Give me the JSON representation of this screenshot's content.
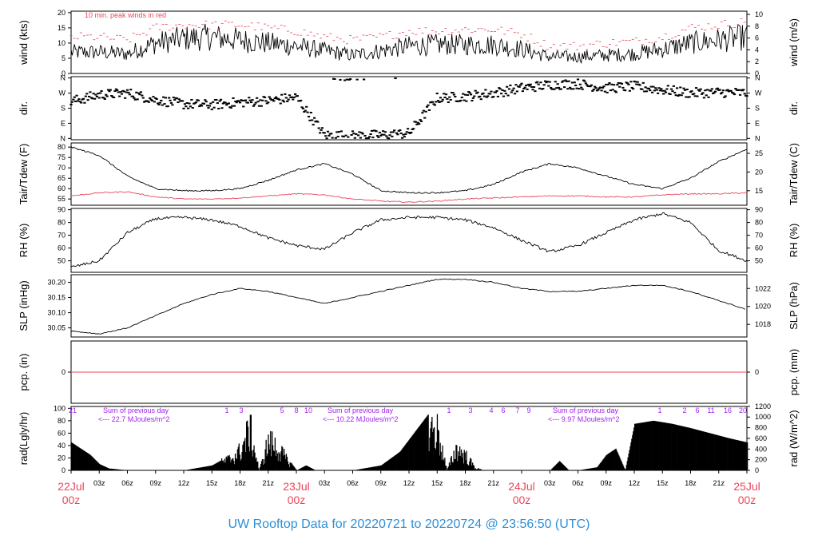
{
  "footer": "UW Rooftop Data for 20220721  to  20220724 @ 23:56:50  (UTC)",
  "colors": {
    "peak": "#e8475b",
    "dew": "#e8475b",
    "zero": "#e8475b",
    "annot": "#a020f0",
    "footer": "#2d8fd5",
    "date": "#e8475b"
  },
  "panels": {
    "wind": {
      "left_label": "wind (kts)",
      "right_label": "wind (m/s)",
      "left_ticks": [
        "0",
        "5",
        "10",
        "15",
        "20"
      ],
      "right_ticks": [
        "0",
        "2",
        "4",
        "6",
        "8",
        "10"
      ],
      "note": "10 min. peak winds in red"
    },
    "dir": {
      "left_label": "dir.",
      "right_label": "dir.",
      "ticks": [
        "N",
        "W",
        "S",
        "E",
        "N"
      ]
    },
    "temp": {
      "left_label": "Tair/Tdew (F)",
      "right_label": "Tair/Tdew (C)",
      "left_ticks": [
        "55",
        "60",
        "65",
        "70",
        "75",
        "80"
      ],
      "right_ticks": [
        "15",
        "20",
        "25"
      ]
    },
    "rh": {
      "left_label": "RH (%)",
      "right_label": "RH (%)",
      "left_ticks": [
        "50",
        "60",
        "70",
        "80",
        "90"
      ],
      "right_ticks": [
        "50",
        "60",
        "70",
        "80",
        "90"
      ]
    },
    "slp": {
      "left_label": "SLP (inHg)",
      "right_label": "SLP (hPa)",
      "left_ticks": [
        "30.05",
        "30.10",
        "30.15",
        "30.20"
      ],
      "right_ticks": [
        "1018",
        "1020",
        "1022"
      ]
    },
    "pcp": {
      "left_label": "pcp. (in)",
      "right_label": "pcp. (mm)",
      "left_ticks": [
        "0"
      ],
      "right_ticks": [
        "0"
      ]
    },
    "rad": {
      "left_label": "rad(Lgly/hr)",
      "right_label": "rad (W/m^2)",
      "left_ticks": [
        "0",
        "20",
        "40",
        "60",
        "80",
        "100"
      ],
      "right_ticks": [
        "0",
        "200",
        "400",
        "600",
        "800",
        "1000",
        "1200"
      ]
    }
  },
  "x_axis": {
    "hour_labels": [
      "03z",
      "06z",
      "09z",
      "12z",
      "15z",
      "18z",
      "21z",
      "03z",
      "06z",
      "09z",
      "12z",
      "15z",
      "18z",
      "21z",
      "03z",
      "06z",
      "09z",
      "12z",
      "15z",
      "18z",
      "21z"
    ],
    "date_labels": [
      {
        "day": "22Jul",
        "time": "00z"
      },
      {
        "day": "23Jul",
        "time": "00z"
      },
      {
        "day": "24Jul",
        "time": "00z"
      },
      {
        "day": "25Jul",
        "time": "00z"
      }
    ]
  },
  "annotations": {
    "sums": [
      {
        "title": "Sum of previous day",
        "value": "<--- 22.7 MJoules/m^2"
      },
      {
        "title": "Sum of previous day",
        "value": "<--- 10.22 MJoules/m^2"
      },
      {
        "title": "Sum of previous day",
        "value": "<--- 9.97 MJoules/m^2"
      }
    ],
    "top_numbers": [
      "21",
      "1",
      "3",
      "5",
      "8",
      "10",
      "1",
      "3",
      "4",
      "6",
      "7",
      "9",
      "1",
      "2",
      "6",
      "11",
      "16",
      "20"
    ]
  },
  "chart_data": [
    {
      "type": "line",
      "title": "",
      "ylabel": "wind (kts)",
      "ylim": [
        0,
        20
      ],
      "x": [
        0,
        3,
        6,
        9,
        12,
        15,
        18,
        21,
        24,
        27,
        30,
        33,
        36,
        39,
        42,
        45,
        48,
        51,
        54,
        57,
        60,
        63,
        66,
        69,
        72
      ],
      "series": [
        {
          "name": "",
          "values": [
            7,
            7,
            6.5,
            10,
            11.5,
            12,
            11,
            10,
            9,
            7.5,
            6,
            7.5,
            9,
            9.5,
            9.5,
            9.5,
            8,
            5.5,
            5.5,
            6,
            6.5,
            8,
            10,
            11,
            12
          ]
        },
        {
          "name": "10 min. peak winds in red",
          "values": [
            12,
            12,
            11,
            15,
            16,
            16,
            16,
            15,
            14,
            12,
            11,
            12,
            14,
            14,
            14.5,
            14.5,
            13,
            9,
            9,
            10,
            10.5,
            12,
            15,
            16,
            17
          ]
        }
      ]
    },
    {
      "type": "scatter",
      "title": "",
      "ylabel": "dir.",
      "ylim": [
        0,
        360
      ],
      "x": [
        0,
        3,
        6,
        9,
        12,
        15,
        18,
        21,
        24,
        27,
        30,
        33,
        36,
        39,
        42,
        45,
        48,
        51,
        54,
        57,
        60,
        63,
        66,
        69,
        72
      ],
      "series": [
        {
          "name": "",
          "values": [
            220,
            260,
            270,
            230,
            205,
            200,
            215,
            225,
            245,
            20,
            15,
            20,
            30,
            240,
            250,
            270,
            300,
            320,
            325,
            300,
            310,
            290,
            270,
            275,
            270
          ]
        }
      ]
    },
    {
      "type": "line",
      "title": "",
      "ylabel": "Tair/Tdew (F)",
      "ylim": [
        52,
        82
      ],
      "x": [
        0,
        3,
        6,
        9,
        12,
        15,
        18,
        21,
        24,
        27,
        30,
        33,
        36,
        39,
        42,
        45,
        48,
        51,
        54,
        57,
        60,
        63,
        66,
        69,
        72
      ],
      "series": [
        {
          "name": "",
          "values": [
            80,
            76,
            66,
            60,
            59,
            59,
            60,
            64,
            69,
            72,
            67,
            59,
            58,
            58,
            59,
            62,
            68,
            72,
            70,
            66,
            62,
            60,
            65,
            73,
            79
          ]
        },
        {
          "name": "",
          "values": [
            56.5,
            58,
            58.5,
            56,
            55,
            55,
            55.5,
            56.5,
            57.5,
            57,
            55,
            54,
            53.5,
            54,
            55,
            55.5,
            56,
            56.5,
            56.5,
            56,
            56,
            57,
            57.5,
            57.5,
            58
          ]
        }
      ]
    },
    {
      "type": "line",
      "title": "",
      "ylabel": "RH (%)",
      "ylim": [
        40,
        90
      ],
      "x": [
        0,
        3,
        6,
        9,
        12,
        15,
        18,
        21,
        24,
        27,
        30,
        33,
        36,
        39,
        42,
        45,
        48,
        51,
        54,
        57,
        60,
        63,
        66,
        69,
        72
      ],
      "series": [
        {
          "name": "",
          "values": [
            45,
            50,
            72,
            83,
            84,
            82,
            77,
            68,
            62,
            59,
            72,
            82,
            84,
            84,
            82,
            76,
            66,
            57,
            62,
            72,
            82,
            87,
            80,
            58,
            50
          ]
        }
      ]
    },
    {
      "type": "line",
      "title": "",
      "ylabel": "SLP (inHg)",
      "ylim": [
        30.02,
        30.225
      ],
      "x": [
        0,
        3,
        6,
        9,
        12,
        15,
        18,
        21,
        24,
        27,
        30,
        33,
        36,
        39,
        42,
        45,
        48,
        51,
        54,
        57,
        60,
        63,
        66,
        69,
        72
      ],
      "series": [
        {
          "name": "",
          "values": [
            30.04,
            30.03,
            30.05,
            30.09,
            30.13,
            30.16,
            30.18,
            30.17,
            30.15,
            30.13,
            30.15,
            30.17,
            30.19,
            30.21,
            30.21,
            30.2,
            30.18,
            30.17,
            30.17,
            30.18,
            30.19,
            30.19,
            30.17,
            30.14,
            30.11
          ]
        }
      ]
    },
    {
      "type": "line",
      "title": "",
      "ylabel": "pcp. (in)",
      "ylim": [
        -1,
        1
      ],
      "x": [
        0,
        72
      ],
      "series": [
        {
          "name": "",
          "values": [
            0,
            0
          ]
        }
      ]
    },
    {
      "type": "area",
      "title": "",
      "ylabel": "rad(Lgly/hr)",
      "ylim": [
        0,
        100
      ],
      "x": [
        0,
        2,
        3,
        4,
        6,
        12,
        15,
        17,
        18,
        19,
        20,
        21,
        22,
        23,
        24,
        25,
        26,
        30,
        33,
        35,
        36,
        37,
        38,
        39,
        40,
        41,
        42,
        43,
        44,
        45,
        48,
        51,
        52,
        53,
        54,
        56,
        57,
        58,
        59,
        60,
        62,
        64,
        66,
        68,
        70,
        72
      ],
      "series": [
        {
          "name": "",
          "values": [
            45,
            25,
            10,
            3,
            0,
            0,
            8,
            25,
            40,
            85,
            0,
            60,
            45,
            20,
            0,
            8,
            0,
            0,
            8,
            30,
            50,
            70,
            90,
            80,
            0,
            45,
            30,
            5,
            0,
            0,
            0,
            0,
            15,
            0,
            0,
            5,
            25,
            35,
            0,
            75,
            80,
            75,
            68,
            60,
            52,
            45
          ]
        }
      ]
    }
  ]
}
